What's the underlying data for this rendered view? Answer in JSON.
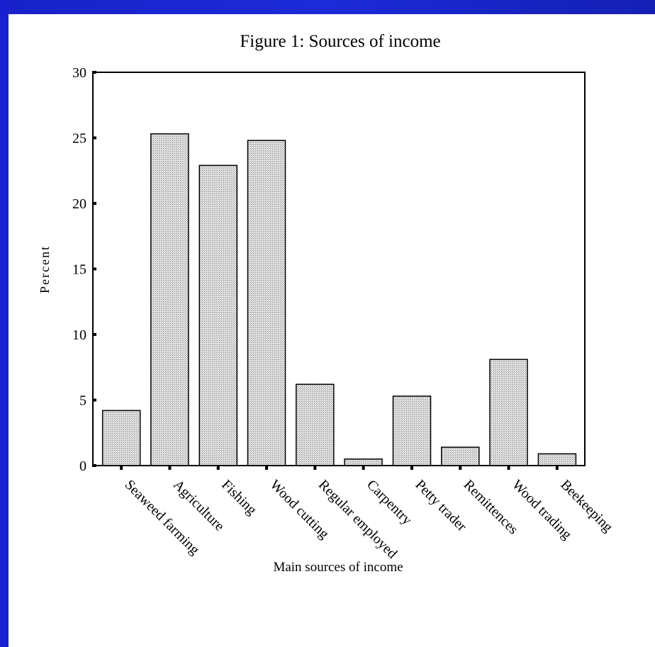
{
  "chart_data": {
    "type": "bar",
    "title": "Figure 1: Sources of income",
    "xlabel": "Main sources of income",
    "ylabel": "Percent",
    "ylim": [
      0,
      30
    ],
    "yticks": [
      0,
      5,
      10,
      15,
      20,
      25,
      30
    ],
    "categories": [
      "Seaweed farming",
      "Agriculture",
      "Fishing",
      "Wood cutting",
      "Regular employed",
      "Carpentry",
      "Petty trader",
      "Remittences",
      "Wood trading",
      "Beekeeping"
    ],
    "values": [
      4.2,
      25.3,
      22.9,
      24.8,
      6.2,
      0.5,
      5.3,
      1.4,
      8.1,
      0.9
    ],
    "grid": false,
    "legend": "none",
    "bar_fill": "#cfcfcf",
    "bar_stroke": "#000000"
  }
}
